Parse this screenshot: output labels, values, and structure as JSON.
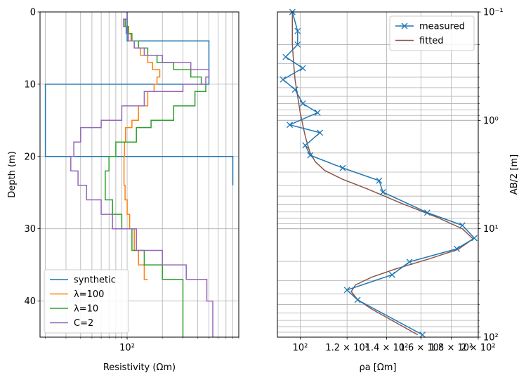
{
  "chart_data": [
    {
      "type": "line",
      "xlabel": "Resistivity (Ωm)",
      "ylabel": "Depth (m)",
      "xscale": "log",
      "xlim": [
        18,
        900
      ],
      "ylim": [
        45,
        0
      ],
      "yticks": [
        0,
        10,
        20,
        30,
        40
      ],
      "xticks": [
        {
          "value": 100,
          "label": "10²"
        }
      ],
      "grid": true,
      "legend": "lower-left",
      "series": [
        {
          "name": "synthetic",
          "color": "#1f77b4",
          "x": [
            100,
            100,
            500,
            500,
            20,
            20,
            800,
            800
          ],
          "y": [
            0,
            4,
            4,
            10,
            10,
            20,
            20,
            24
          ]
        },
        {
          "name": "λ=100",
          "color": "#ff7f0e",
          "x": [
            100,
            100,
            97,
            97,
            103,
            103,
            108,
            108,
            115,
            115,
            130,
            130,
            150,
            150,
            165,
            165,
            190,
            190,
            180,
            180,
            170,
            170,
            150,
            150,
            125,
            125,
            110,
            110,
            97,
            97,
            95,
            95,
            94,
            94,
            94,
            94,
            96,
            96,
            100,
            100,
            105,
            105,
            115,
            115,
            125,
            125,
            140,
            140,
            150
          ],
          "y": [
            0,
            1,
            1,
            2,
            2,
            3,
            3,
            4,
            4,
            5,
            5,
            6,
            6,
            7,
            7,
            8,
            8,
            9,
            9,
            10,
            10,
            11,
            11,
            13,
            13,
            15,
            15,
            16,
            16,
            18,
            18,
            20,
            20,
            22,
            22,
            24,
            24,
            26,
            26,
            28,
            28,
            30,
            30,
            33,
            33,
            35,
            35,
            37,
            37
          ]
        },
        {
          "name": "λ=10",
          "color": "#2ca02c",
          "x": [
            100,
            100,
            96,
            96,
            102,
            102,
            110,
            110,
            125,
            125,
            150,
            150,
            180,
            180,
            250,
            250,
            350,
            350,
            430,
            430,
            470,
            470,
            380,
            380,
            250,
            250,
            160,
            160,
            120,
            120,
            80,
            80,
            70,
            70,
            65,
            65,
            65,
            65,
            75,
            75,
            90,
            90,
            110,
            110,
            140,
            140,
            200,
            200,
            300,
            300
          ],
          "y": [
            0,
            1,
            1,
            2,
            2,
            3,
            3,
            4,
            4,
            5,
            5,
            6,
            6,
            7,
            7,
            8,
            8,
            9,
            9,
            10,
            10,
            11,
            11,
            13,
            13,
            15,
            15,
            16,
            16,
            18,
            18,
            20,
            20,
            22,
            22,
            24,
            24,
            26,
            26,
            28,
            28,
            30,
            30,
            33,
            33,
            35,
            35,
            37,
            37,
            45
          ]
        },
        {
          "name": "C=2",
          "color": "#9467bd",
          "x": [
            100,
            100,
            93,
            93,
            98,
            98,
            103,
            103,
            115,
            115,
            140,
            140,
            200,
            200,
            350,
            350,
            500,
            500,
            470,
            470,
            300,
            300,
            140,
            140,
            90,
            90,
            60,
            60,
            40,
            40,
            35,
            35,
            33,
            33,
            38,
            38,
            45,
            45,
            60,
            60,
            75,
            75,
            120,
            120,
            200,
            200,
            320,
            320,
            480,
            480,
            540,
            540
          ],
          "y": [
            0,
            1,
            1,
            2,
            2,
            3,
            3,
            4,
            4,
            5,
            5,
            6,
            6,
            7,
            7,
            8,
            8,
            9,
            9,
            10,
            10,
            11,
            11,
            13,
            13,
            15,
            15,
            16,
            16,
            18,
            18,
            20,
            20,
            22,
            22,
            24,
            24,
            26,
            26,
            28,
            28,
            30,
            30,
            33,
            33,
            35,
            35,
            37,
            37,
            40,
            40,
            45
          ]
        }
      ]
    },
    {
      "type": "line",
      "xlabel": "ρa [Ωm]",
      "ylabel": "AB/2 [m]",
      "xscale": "log",
      "yscale": "log",
      "xlim": [
        91.5,
        200
      ],
      "ylim": [
        100,
        0.1
      ],
      "xticks": [
        {
          "value": 100,
          "label": "10²"
        },
        {
          "value": 120,
          "label": "1.2 × 10²"
        },
        {
          "value": 140,
          "label": "1.4 × 10²"
        },
        {
          "value": 160,
          "label": "1.6 × 10²"
        },
        {
          "value": 180,
          "label": "1.8 × 10²"
        },
        {
          "value": 200,
          "label": "2 × 10²"
        }
      ],
      "yticks": [
        {
          "value": 0.1,
          "label": "10⁻¹"
        },
        {
          "value": 1,
          "label": "10⁰"
        },
        {
          "value": 10,
          "label": "10¹"
        },
        {
          "value": 100,
          "label": "10²"
        }
      ],
      "grid": true,
      "legend": "top-right",
      "series": [
        {
          "name": "measured",
          "color": "#1f77b4",
          "marker": "x",
          "x": [
            97,
            99,
            99,
            94.5,
            101,
            93.5,
            98,
            101,
            107,
            96,
            108,
            102,
            104,
            118,
            136,
            138,
            164,
            188,
            197,
            184,
            153,
            143,
            120,
            125,
            161
          ],
          "y": [
            0.1,
            0.15,
            0.2,
            0.26,
            0.33,
            0.42,
            0.52,
            0.7,
            0.85,
            1.1,
            1.3,
            1.7,
            2.1,
            2.75,
            3.6,
            4.6,
            7.1,
            9.3,
            12.2,
            15.3,
            20.2,
            26.6,
            36.7,
            45.3,
            95
          ]
        },
        {
          "name": "fitted",
          "color": "#8c564b",
          "x": [
            97,
            97,
            97.5,
            98,
            99,
            100,
            101,
            102,
            103,
            104,
            106,
            110,
            118,
            130,
            148,
            170,
            188,
            196,
            185,
            165,
            145,
            132,
            124,
            122,
            125,
            132,
            158
          ],
          "y": [
            0.1,
            0.2,
            0.3,
            0.42,
            0.6,
            0.85,
            1.1,
            1.4,
            1.7,
            2.0,
            2.4,
            2.9,
            3.5,
            4.3,
            5.8,
            7.8,
            10,
            12.4,
            15.5,
            19,
            23.5,
            28,
            33,
            38,
            45,
            55,
            95
          ]
        }
      ]
    }
  ]
}
